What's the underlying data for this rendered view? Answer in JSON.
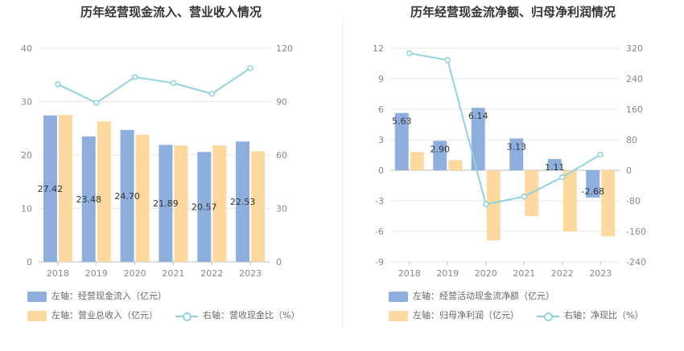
{
  "left_panel": {
    "title": "历年经营现金流入、营业收入情况",
    "legend": {
      "bar1": "左轴：经营现金流入（亿元）",
      "bar2": "左轴：营业总收入（亿元）",
      "line": "右轴：营收现金比（%）"
    }
  },
  "right_panel": {
    "title": "历年经营现金流净额、归母净利润情况",
    "legend": {
      "bar1": "左轴：经营活动现金流净额（亿元）",
      "bar2": "左轴：归母净利润（亿元）",
      "line": "右轴：净现比（%）"
    }
  },
  "colors": {
    "blue": "#8eaedd",
    "orange": "#fdd99f",
    "line": "#8fd3dc"
  },
  "chart_data": [
    {
      "type": "bar",
      "categories": [
        "2018",
        "2019",
        "2020",
        "2021",
        "2022",
        "2023"
      ],
      "series": [
        {
          "name": "左轴：经营现金流入（亿元）",
          "values": [
            27.42,
            23.48,
            24.7,
            21.89,
            20.57,
            22.53
          ],
          "labels": [
            "27.42",
            "23.48",
            "24.70",
            "21.89",
            "20.57",
            "22.53"
          ]
        },
        {
          "name": "左轴：营业总收入（亿元）",
          "values": [
            27.5,
            26.3,
            23.8,
            21.8,
            21.8,
            20.7
          ]
        },
        {
          "name": "右轴：营收现金比（%）",
          "type": "line",
          "axis": "right",
          "values": [
            99.7,
            89.3,
            103.8,
            100.4,
            94.4,
            108.8
          ]
        }
      ],
      "ylim_left": [
        0,
        40
      ],
      "yticks_left": [
        "0",
        "10",
        "20",
        "30",
        "40"
      ],
      "ylim_right": [
        0,
        120
      ],
      "yticks_right": [
        "0",
        "30",
        "60",
        "90",
        "120"
      ],
      "grid": true
    },
    {
      "type": "bar",
      "categories": [
        "2018",
        "2019",
        "2020",
        "2021",
        "2022",
        "2023"
      ],
      "series": [
        {
          "name": "左轴：经营活动现金流净额（亿元）",
          "values": [
            5.63,
            2.9,
            6.14,
            3.13,
            1.11,
            -2.68
          ],
          "labels": [
            "5.63",
            "2.90",
            "6.14",
            "3.13",
            "1.11",
            "-2.68"
          ]
        },
        {
          "name": "左轴：归母净利润（亿元）",
          "values": [
            1.8,
            1.0,
            -6.9,
            -4.5,
            -6.0,
            -6.5
          ]
        },
        {
          "name": "右轴：净现比（%）",
          "type": "line",
          "axis": "right",
          "values": [
            307,
            289,
            -89,
            -69,
            -18,
            41
          ]
        }
      ],
      "ylim_left": [
        -9,
        12
      ],
      "yticks_left": [
        "-9",
        "-6",
        "-3",
        "0",
        "3",
        "6",
        "9",
        "12"
      ],
      "ylim_right": [
        -240,
        320
      ],
      "yticks_right": [
        "-240",
        "-160",
        "-80",
        "0",
        "80",
        "160",
        "240",
        "320"
      ],
      "grid": true
    }
  ]
}
